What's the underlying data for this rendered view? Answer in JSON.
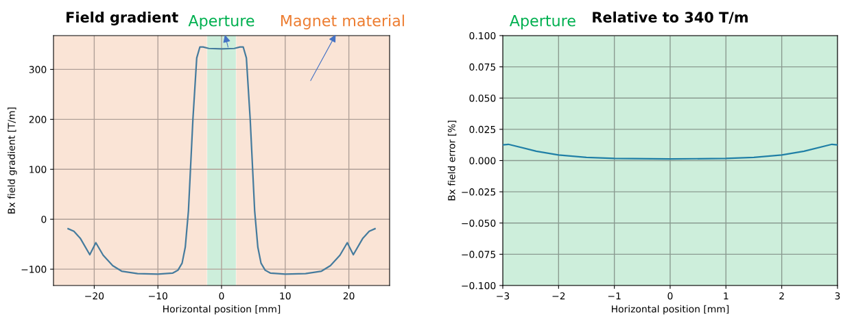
{
  "chart_data": [
    {
      "type": "line",
      "title": "Field gradient",
      "xlabel": "Horizontal position [mm]",
      "ylabel": "Bx field gradient [T/m]",
      "x": [
        -24.1,
        -23.2,
        -22.2,
        -20.7,
        -19.75,
        -18.6,
        -17.1,
        -15.7,
        -13.2,
        -10,
        -7.7,
        -6.85,
        -6.2,
        -5.7,
        -5.2,
        -4.5,
        -3.9,
        -3.4,
        -2.9,
        -2.0,
        0,
        2.0,
        2.9,
        3.4,
        3.9,
        4.5,
        5.2,
        5.7,
        6.2,
        6.85,
        7.7,
        10,
        13.2,
        15.7,
        17.1,
        18.6,
        19.75,
        20.7,
        22.2,
        23.2,
        24.1
      ],
      "series": [
        {
          "color": "#457b9d",
          "values": [
            -19,
            -24,
            -38,
            -71,
            -47,
            -72,
            -93,
            -104,
            -109,
            -110,
            -108,
            -102,
            -88,
            -56,
            17,
            200,
            323,
            345,
            345,
            342,
            341,
            342,
            345,
            345,
            323,
            200,
            17,
            -56,
            -88,
            -102,
            -108,
            -110,
            -109,
            -104,
            -93,
            -72,
            -47,
            -71,
            -38,
            -24,
            -19
          ]
        }
      ],
      "xlim": [
        -26.4,
        26.4
      ],
      "ylim": [
        -132.7,
        367.7
      ],
      "xticks": [
        {
          "value": -20,
          "label": "−20"
        },
        {
          "value": -10,
          "label": "−10"
        },
        0,
        10,
        20
      ],
      "yticks": [
        {
          "value": -100,
          "label": "−100"
        },
        0,
        100,
        200,
        300
      ],
      "bands": [
        {
          "axis": "x",
          "from": -26.4,
          "to": -2.3,
          "color": "#fae4d6"
        },
        {
          "axis": "x",
          "from": 2.3,
          "to": 26.4,
          "color": "#fae4d6"
        },
        {
          "axis": "x",
          "from": -2.25,
          "to": 2.25,
          "color": "#cdeedb"
        }
      ],
      "annotations": [
        {
          "text": "Aperture",
          "x": 1.1,
          "y": 341
        },
        "Magnet material"
      ],
      "grid": true,
      "legend": false,
      "marker": "none",
      "line_style": "solid"
    },
    {
      "type": "line",
      "title": "Relative to 340 T/m",
      "xlabel": "Horizontal position [mm]",
      "ylabel": "Bx field error [%]",
      "x": [
        -3,
        -2.9,
        -2.4,
        -2,
        -1.5,
        -1,
        0,
        1,
        1.5,
        2,
        2.4,
        2.9,
        3
      ],
      "series": [
        {
          "color": "#1f7fa6",
          "values": [
            0.0125,
            0.013,
            0.0075,
            0.0045,
            0.0025,
            0.0017,
            0.0013,
            0.0017,
            0.0025,
            0.0045,
            0.0075,
            0.013,
            0.0125
          ]
        }
      ],
      "xlim": [
        -3,
        3
      ],
      "ylim": [
        -0.1,
        0.1
      ],
      "xticks": [
        {
          "value": -3,
          "label": "−3"
        },
        {
          "value": -2,
          "label": "−2"
        },
        {
          "value": -1,
          "label": "−1"
        },
        0,
        1,
        2,
        3
      ],
      "yticks": [
        {
          "value": -0.1,
          "label": "−0.100"
        },
        {
          "value": -0.075,
          "label": "−0.075"
        },
        {
          "value": -0.05,
          "label": "−0.050"
        },
        {
          "value": -0.025,
          "label": "−0.025"
        },
        {
          "value": 0,
          "label": "0.000"
        },
        {
          "value": 0.025,
          "label": "0.025"
        },
        {
          "value": 0.05,
          "label": "0.050"
        },
        {
          "value": 0.075,
          "label": "0.075"
        },
        {
          "value": 0.1,
          "label": "0.100"
        }
      ],
      "bands": [
        {
          "axis": "x",
          "from": -3,
          "to": 3,
          "color": "#cdeedb"
        }
      ],
      "annotations": [
        "Aperture"
      ],
      "grid": true,
      "legend": false,
      "marker": "none",
      "line_style": "solid"
    }
  ]
}
